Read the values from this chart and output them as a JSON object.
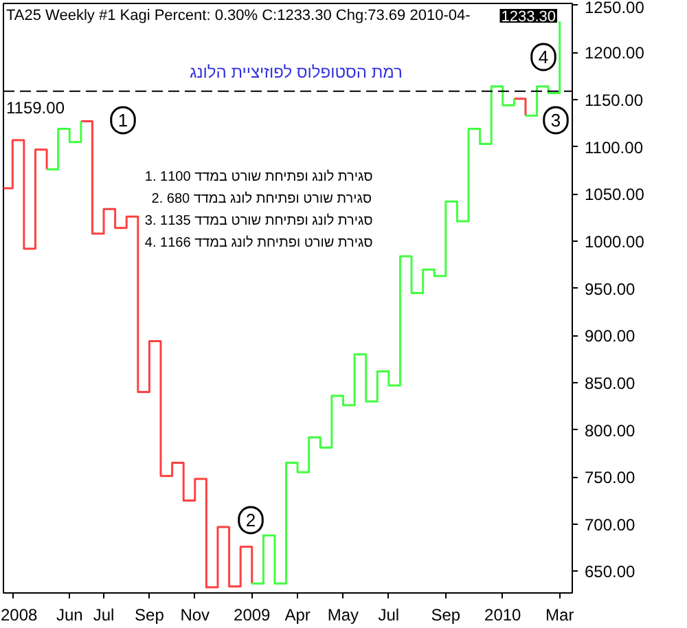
{
  "chart_data": {
    "type": "step",
    "title": "TA25  Weekly  #1 Kagi Percent: 0.30%    C:1233.30  Chg:73.69  2010-04-",
    "categories": [
      null,
      "2008",
      null,
      null,
      null,
      null,
      "Jun",
      null,
      null,
      "Jul",
      null,
      null,
      null,
      "Sep",
      null,
      null,
      null,
      "Nov",
      null,
      null,
      null,
      null,
      "2009",
      null,
      null,
      null,
      "Apr",
      null,
      null,
      null,
      "May",
      null,
      null,
      null,
      "Jul",
      null,
      null,
      null,
      null,
      "Sep",
      null,
      null,
      null,
      null,
      "2010",
      null,
      null,
      null,
      null,
      "Mar"
    ],
    "series": [
      {
        "color": "#ff4040",
        "values": [
          1056,
          1107,
          992,
          1097,
          1076,
          null,
          null,
          1127,
          1008,
          1034,
          1014,
          1026,
          840,
          894,
          751,
          765,
          725,
          748,
          633,
          697,
          634,
          676,
          637,
          null,
          null,
          null,
          null,
          null,
          null,
          null,
          null,
          null,
          null,
          null,
          null,
          null,
          null,
          null,
          null,
          null,
          null,
          null,
          null,
          null,
          null,
          1151,
          1133,
          null,
          null,
          null
        ]
      },
      {
        "color": "#40ff40",
        "values": [
          null,
          null,
          null,
          null,
          1076,
          1119,
          1105,
          1127,
          null,
          null,
          null,
          null,
          null,
          null,
          null,
          null,
          null,
          null,
          null,
          null,
          null,
          null,
          637,
          688,
          637,
          765,
          755,
          792,
          781,
          836,
          826,
          880,
          830,
          862,
          847,
          984,
          945,
          970,
          963,
          1042,
          1021,
          1119,
          1103,
          1164,
          1144,
          1151,
          null,
          null,
          null,
          null
        ]
      },
      {
        "color": "#40ff40",
        "values": [
          null,
          null,
          null,
          null,
          null,
          null,
          null,
          null,
          null,
          null,
          null,
          null,
          null,
          null,
          null,
          null,
          null,
          null,
          null,
          null,
          null,
          null,
          null,
          null,
          null,
          null,
          null,
          null,
          null,
          null,
          null,
          null,
          null,
          null,
          null,
          null,
          null,
          null,
          null,
          null,
          null,
          null,
          null,
          null,
          null,
          null,
          1133,
          1164,
          1157,
          1233.3
        ]
      }
    ],
    "ylim": [
      627,
      1252
    ],
    "yticks": [
      {
        "value": 650,
        "label": "650.00"
      },
      {
        "value": 700,
        "label": "700.00"
      },
      {
        "value": 750,
        "label": "750.00"
      },
      {
        "value": 800,
        "label": "800.00"
      },
      {
        "value": 850,
        "label": "850.00"
      },
      {
        "value": 900,
        "label": "900.00"
      },
      {
        "value": 950,
        "label": "950.00"
      },
      {
        "value": 1000,
        "label": "1000.00"
      },
      {
        "value": 1050,
        "label": "1050.00"
      },
      {
        "value": 1100,
        "label": "1100.00"
      },
      {
        "value": 1150,
        "label": "1150.00"
      },
      {
        "value": 1200,
        "label": "1200.00"
      },
      {
        "value": 1250,
        "label": "1250.00"
      }
    ],
    "ref_lines": [
      {
        "axis": "y",
        "value": 1159,
        "label": "1159.00",
        "color": "#000000",
        "line_style": "dashed"
      }
    ],
    "annotations": [
      "1233.30",
      "רמת הסטופלוס לפוזיציית הלונג",
      "1. סגירת לונג ופתיחת שורט במדד 1100",
      "2. סגירת שורט ופתיחת לונג במדד 680",
      "3. סגירת לונג ופתיחת שורט במדד 1135",
      "4. סגירת שורט ופתיחת לונג במדד 1166",
      "1",
      "2",
      "3",
      "4"
    ],
    "grid": false
  }
}
